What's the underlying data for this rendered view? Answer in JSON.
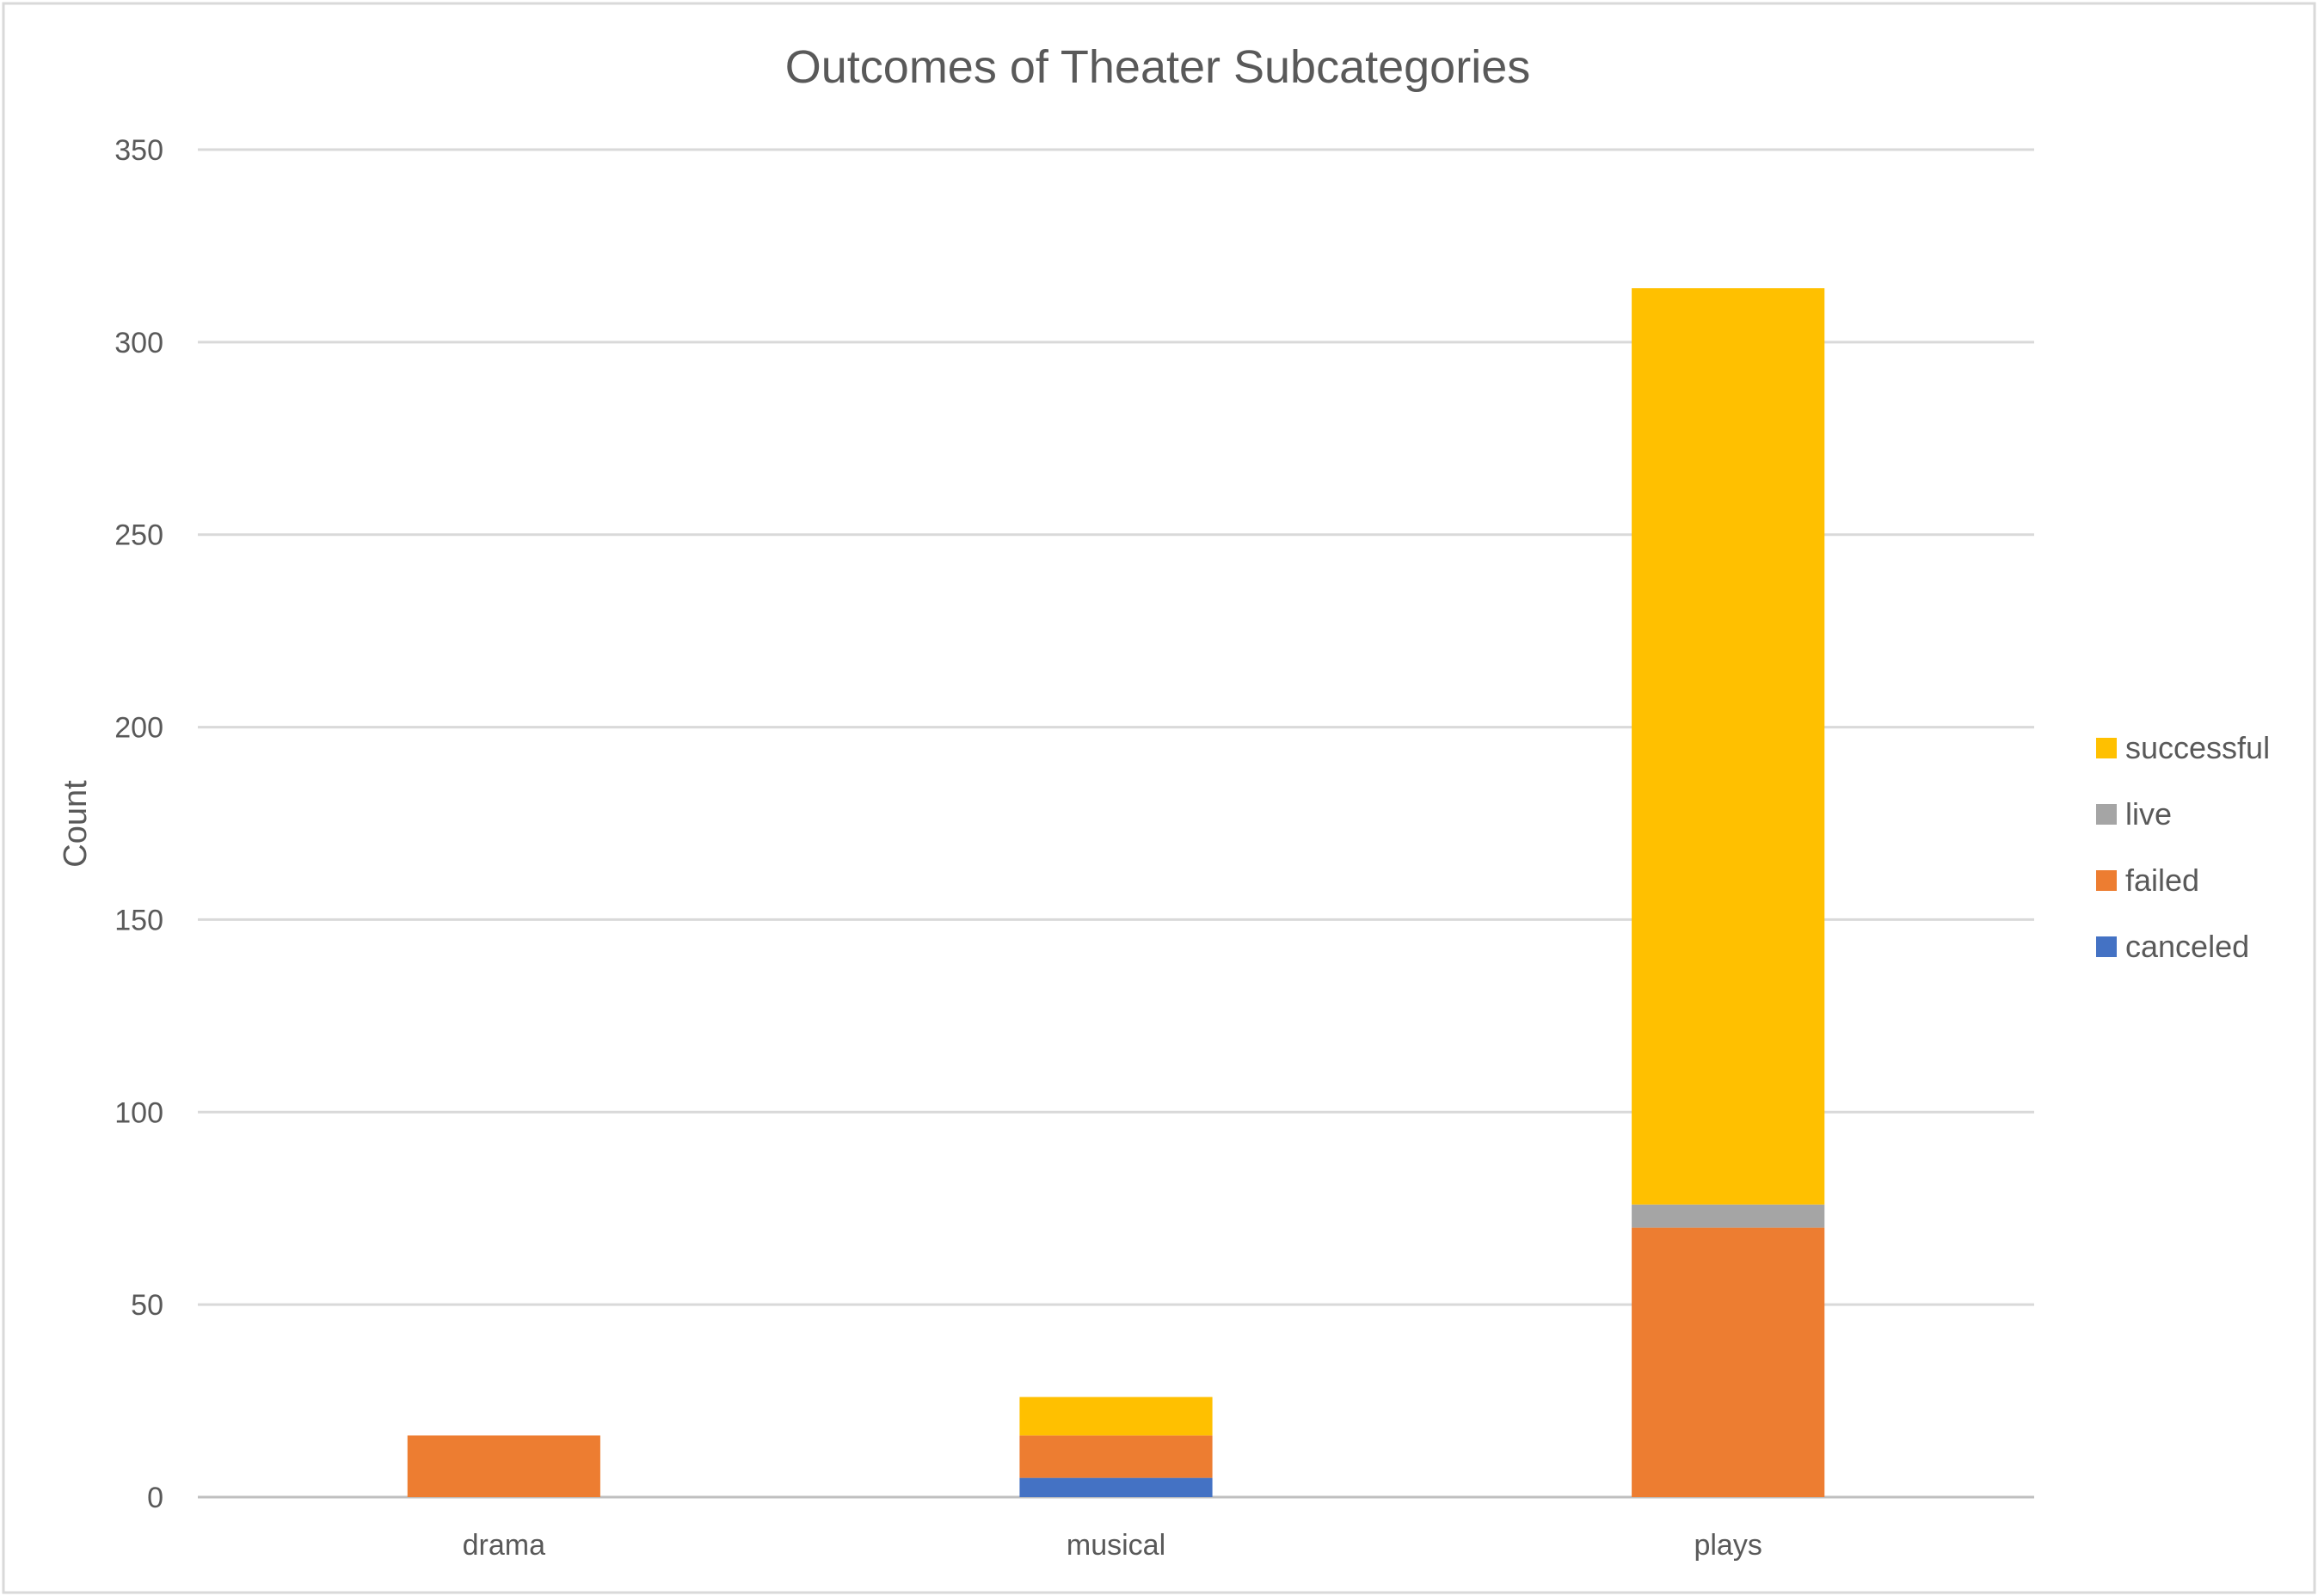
{
  "chart_data": {
    "type": "bar",
    "stacked": true,
    "title": "Outcomes of Theater Subcategories",
    "xlabel": "",
    "ylabel": "Count",
    "ylim": [
      0,
      350
    ],
    "yticks": [
      0,
      50,
      100,
      150,
      200,
      250,
      300,
      350
    ],
    "ytick_labels": [
      "0",
      "50",
      "100",
      "150",
      "200",
      "250",
      "300",
      "350"
    ],
    "grid": true,
    "legend_position": "right",
    "categories": [
      "drama",
      "musical",
      "plays"
    ],
    "series": [
      {
        "name": "canceled",
        "color": "#4472C4",
        "values": [
          0,
          5,
          0
        ]
      },
      {
        "name": "failed",
        "color": "#ED7D31",
        "values": [
          16,
          11,
          70
        ]
      },
      {
        "name": "live",
        "color": "#A5A5A5",
        "values": [
          0,
          0,
          6
        ]
      },
      {
        "name": "successful",
        "color": "#FFC000",
        "values": [
          0,
          10,
          238
        ]
      }
    ],
    "legend_order": [
      "successful",
      "live",
      "failed",
      "canceled"
    ]
  }
}
